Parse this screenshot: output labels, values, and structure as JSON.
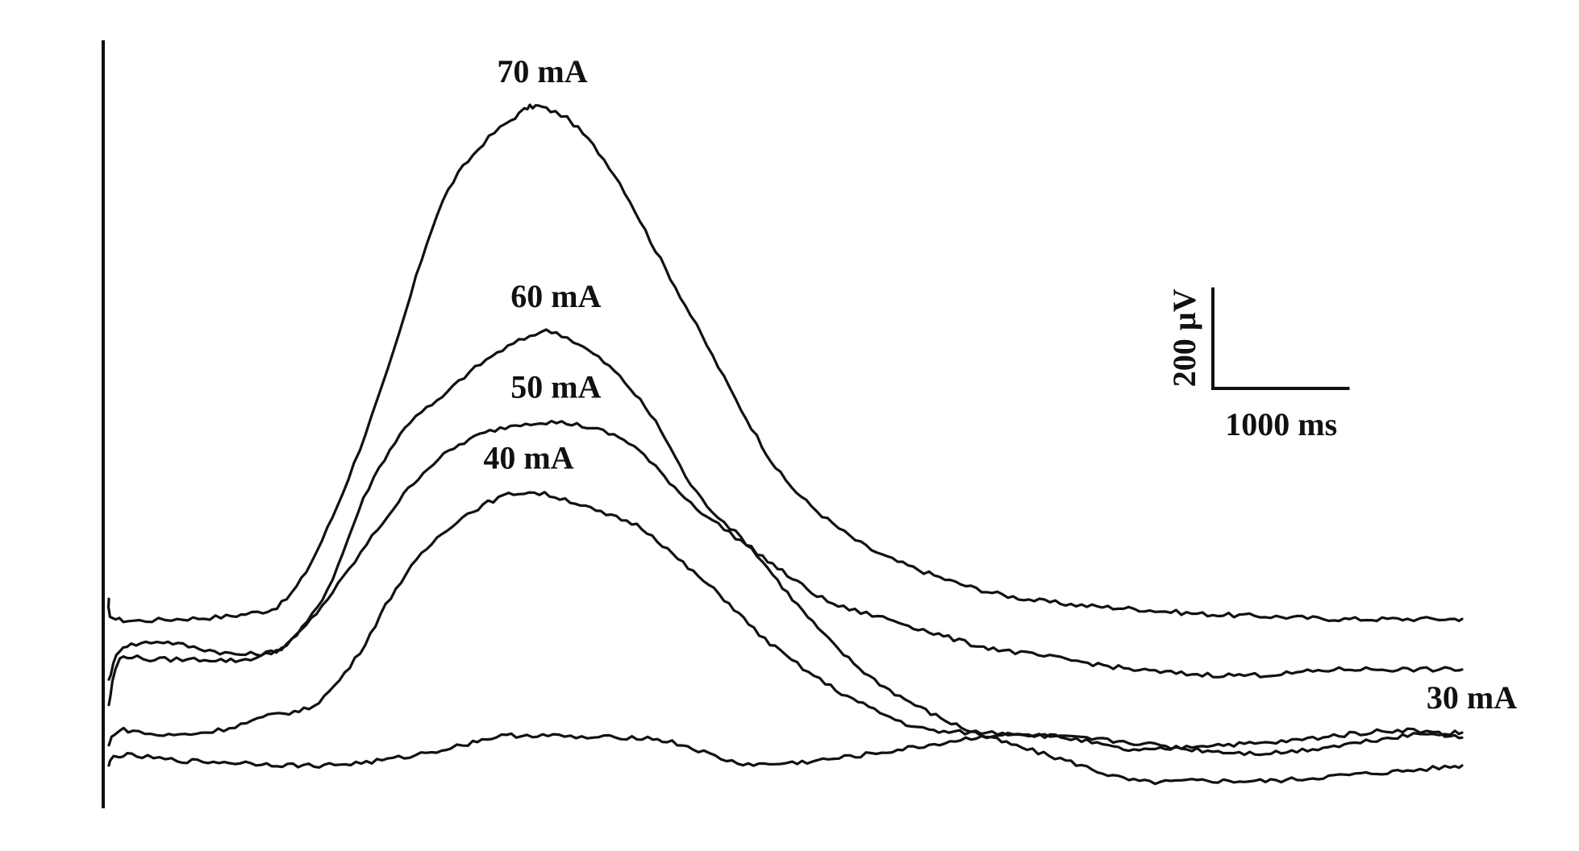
{
  "chart_data": {
    "type": "line",
    "title": "",
    "xlabel": "",
    "ylabel": "",
    "grid": false,
    "x_unit": "ms",
    "y_unit": "µV",
    "xlim": [
      0,
      10000
    ],
    "ylim": [
      -350,
      1150
    ],
    "scale_bar": {
      "y_label": "200 µV",
      "y_value": 200,
      "x_label": "1000 ms",
      "x_value": 1000
    },
    "series": [
      {
        "name": "70 mA",
        "x": [
          0,
          50,
          500,
          1000,
          1300,
          1600,
          2000,
          2400,
          2700,
          3000,
          3100,
          3200,
          3400,
          3700,
          4000,
          4300,
          4700,
          5000,
          5500,
          6000,
          6500,
          7000,
          7500,
          8000,
          8500,
          9000,
          9500,
          9900
        ],
        "y": [
          60,
          20,
          20,
          30,
          60,
          200,
          480,
          820,
          950,
          1020,
          1035,
          1030,
          1000,
          900,
          750,
          600,
          400,
          280,
          170,
          110,
          70,
          50,
          40,
          30,
          25,
          20,
          20,
          20
        ]
      },
      {
        "name": "60 mA",
        "x": [
          0,
          80,
          200,
          400,
          700,
          1000,
          1300,
          1600,
          1900,
          2200,
          2400,
          2600,
          2800,
          3000,
          3200,
          3400,
          3700,
          4000,
          4300,
          4700,
          5000,
          5300,
          5600,
          5900,
          6200,
          6500,
          7000,
          7500,
          8000,
          8500,
          9000,
          9500,
          9900
        ],
        "y": [
          -100,
          -40,
          -30,
          -25,
          -40,
          -50,
          -30,
          80,
          280,
          410,
          450,
          500,
          540,
          570,
          590,
          570,
          510,
          410,
          270,
          160,
          60,
          -30,
          -100,
          -150,
          -190,
          -220,
          -260,
          -300,
          -300,
          -300,
          -290,
          -280,
          -270
        ]
      },
      {
        "name": "50 mA",
        "x": [
          0,
          80,
          300,
          700,
          1000,
          1300,
          1600,
          2000,
          2300,
          2600,
          2900,
          3200,
          3500,
          3800,
          4000,
          4300,
          4700,
          5000,
          5300,
          5700,
          6000,
          6400,
          7000,
          7500,
          8000,
          8500,
          9000,
          9500,
          9900
        ],
        "y": [
          -150,
          -60,
          -60,
          -60,
          -60,
          -30,
          60,
          210,
          310,
          370,
          400,
          410,
          400,
          370,
          320,
          240,
          160,
          100,
          50,
          20,
          -5,
          -35,
          -60,
          -80,
          -90,
          -90,
          -80,
          -80,
          -80
        ]
      },
      {
        "name": "40 mA",
        "x": [
          0,
          80,
          400,
          800,
          1200,
          1500,
          1800,
          2100,
          2400,
          2700,
          3000,
          3300,
          3600,
          3900,
          4200,
          4500,
          4800,
          5200,
          5600,
          6000,
          6500,
          7000,
          7500,
          8000,
          8500,
          9000,
          9500,
          9900
        ],
        "y": [
          -230,
          -200,
          -210,
          -200,
          -170,
          -150,
          -60,
          80,
          180,
          240,
          270,
          260,
          230,
          200,
          130,
          60,
          -20,
          -100,
          -160,
          -200,
          -205,
          -215,
          -240,
          -230,
          -225,
          -210,
          -200,
          -215
        ]
      },
      {
        "name": "30 mA",
        "x": [
          0,
          80,
          500,
          1000,
          1500,
          2000,
          2500,
          2800,
          3100,
          3500,
          3900,
          4200,
          4600,
          5000,
          5500,
          6000,
          6500,
          7000,
          7500,
          8000,
          8500,
          9000,
          9500,
          9900
        ],
        "y": [
          -270,
          -250,
          -260,
          -265,
          -270,
          -260,
          -235,
          -215,
          -210,
          -215,
          -215,
          -230,
          -265,
          -265,
          -250,
          -230,
          -210,
          -215,
          -225,
          -240,
          -245,
          -230,
          -210,
          -205
        ]
      }
    ]
  }
}
